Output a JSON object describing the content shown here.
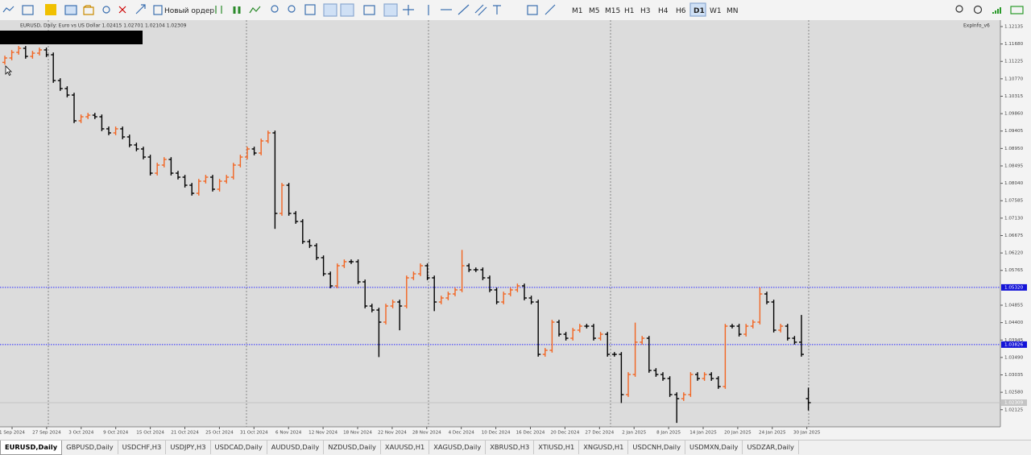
{
  "toolbar": {
    "new_order": "Новый ордер",
    "timeframes": [
      "M1",
      "M5",
      "M15",
      "H1",
      "H3",
      "H4",
      "H6",
      "D1",
      "W1",
      "MN"
    ],
    "active_timeframe": "D1"
  },
  "chart_data": {
    "type": "ohlc",
    "header": "EURUSD, Daily:  Euro vs US Dollar  1.02415 1.02701 1.02104 1.02309",
    "indicator": "ExpInfo_v6",
    "up_color": "#f26522",
    "down_color": "#000000",
    "ylim": [
      1.01678,
      1.12303
    ],
    "yticks": [
      {
        "value": 1.12135,
        "label": "1.12135"
      },
      {
        "value": 1.1168,
        "label": "1.11680"
      },
      {
        "value": 1.11225,
        "label": "1.11225"
      },
      {
        "value": 1.1077,
        "label": "1.10770"
      },
      {
        "value": 1.10315,
        "label": "1.10315"
      },
      {
        "value": 1.0986,
        "label": "1.09860"
      },
      {
        "value": 1.09405,
        "label": "1.09405"
      },
      {
        "value": 1.0895,
        "label": "1.08950"
      },
      {
        "value": 1.08495,
        "label": "1.08495"
      },
      {
        "value": 1.0804,
        "label": "1.08040"
      },
      {
        "value": 1.07585,
        "label": "1.07585"
      },
      {
        "value": 1.0713,
        "label": "1.07130"
      },
      {
        "value": 1.06675,
        "label": "1.06675"
      },
      {
        "value": 1.0622,
        "label": "1.06220"
      },
      {
        "value": 1.05765,
        "label": "1.05765"
      },
      {
        "value": 1.04855,
        "label": "1.04855"
      },
      {
        "value": 1.044,
        "label": "1.04400"
      },
      {
        "value": 1.03945,
        "label": "1.03945"
      },
      {
        "value": 1.0349,
        "label": "1.03490"
      },
      {
        "value": 1.03035,
        "label": "1.03035"
      },
      {
        "value": 1.0258,
        "label": "1.02580"
      },
      {
        "value": 1.02125,
        "label": "1.02125"
      }
    ],
    "hlines": [
      {
        "value": 1.0532,
        "label": "1.05320"
      },
      {
        "value": 1.03826,
        "label": "1.03826"
      }
    ],
    "current": {
      "value": 1.02309,
      "label": "1.02309"
    },
    "xlabels": [
      "1 Sep 2024",
      "27 Sep 2024",
      "3 Oct 2024",
      "9 Oct 2024",
      "15 Oct 2024",
      "21 Oct 2024",
      "25 Oct 2024",
      "31 Oct 2024",
      "6 Nov 2024",
      "12 Nov 2024",
      "18 Nov 2024",
      "22 Nov 2024",
      "28 Nov 2024",
      "4 Dec 2024",
      "10 Dec 2024",
      "16 Dec 2024",
      "20 Dec 2024",
      "27 Dec 2024",
      "2 Jan 2025",
      "8 Jan 2025",
      "14 Jan 2025",
      "20 Jan 2025",
      "24 Jan 2025",
      "30 Jan 2025"
    ],
    "open": [
      1.112,
      1.11314,
      1.11461,
      1.11567,
      1.11356,
      1.1144,
      1.11525,
      1.11398,
      1.10725,
      1.10515,
      1.10346,
      1.09673,
      1.09778,
      1.0982,
      1.09778,
      1.09463,
      1.09357,
      1.09463,
      1.09252,
      1.09042,
      1.08937,
      1.08726,
      1.08305,
      1.08516,
      1.08663,
      1.08305,
      1.082,
      1.0799,
      1.07779,
      1.08095,
      1.082,
      1.07885,
      1.08095,
      1.082,
      1.08516,
      1.08726,
      1.08937,
      1.08831,
      1.09147,
      1.09357,
      1.07253,
      1.0799,
      1.07253,
      1.07043,
      1.06517,
      1.06412,
      1.06096,
      1.05675,
      1.0536,
      1.05886,
      1.05991,
      1.05991,
      1.05465,
      1.04834,
      1.04729,
      1.04413,
      1.04834,
      1.04939,
      1.04834,
      1.0557,
      1.05675,
      1.05886,
      1.0557,
      1.04939,
      1.05044,
      1.05149,
      1.05255,
      1.05886,
      1.05781,
      1.05781,
      1.0557,
      1.05255,
      1.04939,
      1.05149,
      1.05255,
      1.0536,
      1.05044,
      1.04939,
      1.03571,
      1.03677,
      1.04413,
      1.04097,
      1.03992,
      1.04203,
      1.04308,
      1.04308,
      1.03992,
      1.04097,
      1.03571,
      1.03571,
      1.02519,
      1.03045,
      1.03889,
      1.03992,
      1.03151,
      1.03045,
      1.0294,
      1.02519,
      1.02414,
      1.02519,
      1.03045,
      1.0294,
      1.03045,
      1.0294,
      1.0273,
      1.04308,
      1.04308,
      1.04097,
      1.04308,
      1.04413,
      1.05149,
      1.04939,
      1.04203,
      1.04308,
      1.03992,
      1.03889,
      1.02415
    ],
    "high": [
      1.11374,
      1.11521,
      1.11627,
      1.11627,
      1.115,
      1.11585,
      1.11585,
      1.11458,
      1.10785,
      1.10575,
      1.10406,
      1.09838,
      1.0988,
      1.0988,
      1.09838,
      1.09523,
      1.09523,
      1.09523,
      1.09312,
      1.09102,
      1.08997,
      1.08786,
      1.08576,
      1.08723,
      1.08723,
      1.08365,
      1.0826,
      1.0805,
      1.08155,
      1.0826,
      1.0826,
      1.08155,
      1.0826,
      1.08576,
      1.08786,
      1.08997,
      1.08997,
      1.09207,
      1.09417,
      1.09417,
      1.0805,
      1.0805,
      1.07313,
      1.07103,
      1.06577,
      1.06472,
      1.06156,
      1.05735,
      1.05946,
      1.06051,
      1.06051,
      1.06051,
      1.05525,
      1.04894,
      1.04789,
      1.04894,
      1.04999,
      1.04999,
      1.0563,
      1.05735,
      1.05946,
      1.05946,
      1.0563,
      1.05104,
      1.05209,
      1.05315,
      1.063,
      1.05946,
      1.05841,
      1.05841,
      1.0563,
      1.05315,
      1.05209,
      1.05315,
      1.0542,
      1.0542,
      1.05104,
      1.04999,
      1.03737,
      1.04473,
      1.04473,
      1.04157,
      1.04263,
      1.04368,
      1.04368,
      1.04368,
      1.04157,
      1.04157,
      1.03631,
      1.03631,
      1.03105,
      1.044,
      1.04052,
      1.04052,
      1.03211,
      1.03105,
      1.03,
      1.02579,
      1.02579,
      1.03105,
      1.03105,
      1.03105,
      1.03105,
      1.03,
      1.04368,
      1.04368,
      1.04368,
      1.04368,
      1.04473,
      1.0532,
      1.05209,
      1.04999,
      1.04368,
      1.04368,
      1.04052,
      1.046,
      1.02701
    ],
    "low": [
      1.1114,
      1.11254,
      1.11401,
      1.11296,
      1.11296,
      1.1138,
      1.11338,
      1.10665,
      1.10455,
      1.10286,
      1.09613,
      1.09613,
      1.09718,
      1.09718,
      1.09403,
      1.09297,
      1.09297,
      1.09192,
      1.08982,
      1.08877,
      1.08666,
      1.08245,
      1.08245,
      1.08456,
      1.08245,
      1.0814,
      1.0793,
      1.07719,
      1.07719,
      1.08035,
      1.07825,
      1.07825,
      1.08035,
      1.0814,
      1.08456,
      1.08666,
      1.08771,
      1.08771,
      1.09087,
      1.0685,
      1.07193,
      1.07193,
      1.06983,
      1.06457,
      1.06352,
      1.06036,
      1.05615,
      1.053,
      1.053,
      1.05826,
      1.05931,
      1.05405,
      1.04774,
      1.04669,
      1.035,
      1.04353,
      1.04774,
      1.042,
      1.04774,
      1.0551,
      1.05615,
      1.0551,
      1.047,
      1.04879,
      1.04984,
      1.05089,
      1.05195,
      1.05721,
      1.05721,
      1.0551,
      1.05195,
      1.04879,
      1.04879,
      1.05089,
      1.05195,
      1.04984,
      1.04879,
      1.03511,
      1.03511,
      1.03617,
      1.04037,
      1.03932,
      1.03932,
      1.04143,
      1.04248,
      1.03932,
      1.03932,
      1.03511,
      1.03511,
      1.023,
      1.02459,
      1.02985,
      1.03829,
      1.03091,
      1.02985,
      1.0288,
      1.02459,
      1.0178,
      1.02354,
      1.02459,
      1.0288,
      1.0288,
      1.0288,
      1.0267,
      1.0267,
      1.04248,
      1.04037,
      1.04037,
      1.04248,
      1.04353,
      1.04879,
      1.04143,
      1.04143,
      1.03932,
      1.03829,
      1.03511,
      1.02104
    ],
    "close": [
      1.11314,
      1.11461,
      1.11567,
      1.11356,
      1.1144,
      1.11525,
      1.11398,
      1.10725,
      1.10515,
      1.10346,
      1.09673,
      1.09778,
      1.0982,
      1.09778,
      1.09463,
      1.09357,
      1.09463,
      1.09252,
      1.09042,
      1.08937,
      1.08726,
      1.08305,
      1.08516,
      1.08663,
      1.08305,
      1.082,
      1.0799,
      1.07779,
      1.08095,
      1.082,
      1.07885,
      1.08095,
      1.082,
      1.08516,
      1.08726,
      1.08937,
      1.08831,
      1.09147,
      1.09357,
      1.07253,
      1.0799,
      1.07253,
      1.07043,
      1.06517,
      1.06412,
      1.06096,
      1.05675,
      1.0536,
      1.05886,
      1.05991,
      1.05991,
      1.05465,
      1.04834,
      1.04729,
      1.04413,
      1.04834,
      1.04939,
      1.04834,
      1.0557,
      1.05675,
      1.05886,
      1.0557,
      1.04939,
      1.05044,
      1.05149,
      1.05255,
      1.05886,
      1.05781,
      1.05781,
      1.0557,
      1.05255,
      1.04939,
      1.05149,
      1.05255,
      1.0536,
      1.05044,
      1.04939,
      1.03571,
      1.03677,
      1.04413,
      1.04097,
      1.03992,
      1.04203,
      1.04308,
      1.04308,
      1.03992,
      1.04097,
      1.03571,
      1.03571,
      1.02519,
      1.03045,
      1.03889,
      1.03992,
      1.03151,
      1.03045,
      1.0294,
      1.02519,
      1.02414,
      1.02519,
      1.03045,
      1.0294,
      1.03045,
      1.0294,
      1.0273,
      1.04308,
      1.04308,
      1.04097,
      1.04308,
      1.04413,
      1.05149,
      1.04939,
      1.04203,
      1.04308,
      1.03992,
      1.03889,
      1.03571,
      1.02309
    ]
  },
  "tabs": [
    "EURUSD,Daily",
    "GBPUSD,Daily",
    "USDCHF,H3",
    "USDJPY,H3",
    "USDCAD,Daily",
    "AUDUSD,Daily",
    "NZDUSD,Daily",
    "XAUUSD,H1",
    "XAGUSD,Daily",
    "XBRUSD,H3",
    "XTIUSD,H1",
    "XNGUSD,H1",
    "USDCNH,Daily",
    "USDMXN,Daily",
    "USDZAR,Daily"
  ],
  "active_tab": 0
}
